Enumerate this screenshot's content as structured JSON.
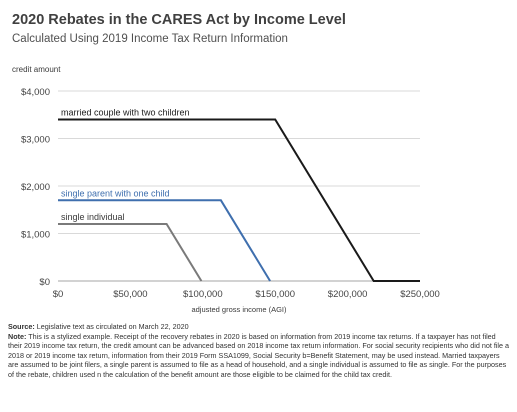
{
  "header": {
    "title": "2020 Rebates in the CARES Act by Income Level",
    "subtitle": "Calculated Using 2019 Income Tax Return Information"
  },
  "chart_data": {
    "type": "line",
    "ylabel": "credit amount",
    "xlabel": "adjusted gross income (AGI)",
    "xlim": [
      0,
      250000
    ],
    "ylim": [
      0,
      4000
    ],
    "x_ticks": [
      0,
      50000,
      100000,
      150000,
      200000,
      250000
    ],
    "x_tick_labels": [
      "$0",
      "$50,000",
      "$100,000",
      "$150,000",
      "$200,000",
      "$250,000"
    ],
    "y_ticks": [
      0,
      1000,
      2000,
      3000,
      4000
    ],
    "y_tick_labels": [
      "$0",
      "$1,000",
      "$2,000",
      "$3,000",
      "$4,000"
    ],
    "grid": "horizontal",
    "series": [
      {
        "name": "married couple with two children",
        "color": "#1a1a1a",
        "label_color": "#1a1a1a",
        "points": [
          [
            0,
            3400
          ],
          [
            150000,
            3400
          ],
          [
            218000,
            0
          ],
          [
            250000,
            0
          ]
        ]
      },
      {
        "name": "single parent with one child",
        "color": "#3f6fae",
        "label_color": "#3f6fae",
        "points": [
          [
            0,
            1700
          ],
          [
            112500,
            1700
          ],
          [
            146500,
            0
          ]
        ]
      },
      {
        "name": "single individual",
        "color": "#7a7a7a",
        "label_color": "#3a3a3a",
        "points": [
          [
            0,
            1200
          ],
          [
            75000,
            1200
          ],
          [
            99000,
            0
          ]
        ]
      }
    ]
  },
  "notes": {
    "source_label": "Source:",
    "source_text": " Legislative text as circulated on March 22, 2020",
    "note_label": "Note:",
    "note_text": " This is a stylized example. Receipt of the recovery rebates in 2020 is based on information  from 2019 income tax returns.  If a taxpayer has not filed their 2019 income tax return, the credit amount can be advanced based on 2018 income tax return information. For social security recipients who did not file a 2018 or 2019 income tax return, information from their 2019 Form SSA1099, Social Security b=Benefit Statement, may be used instead. Married taxpayers are assumed to be joint filers, a single parent is assumed to file as a head of household, and a single individual is assumed to file as single. For the purposes of the rebate, children used n the calculation of the benefit amount are those eligible to be claimed for the child tax credit."
  }
}
